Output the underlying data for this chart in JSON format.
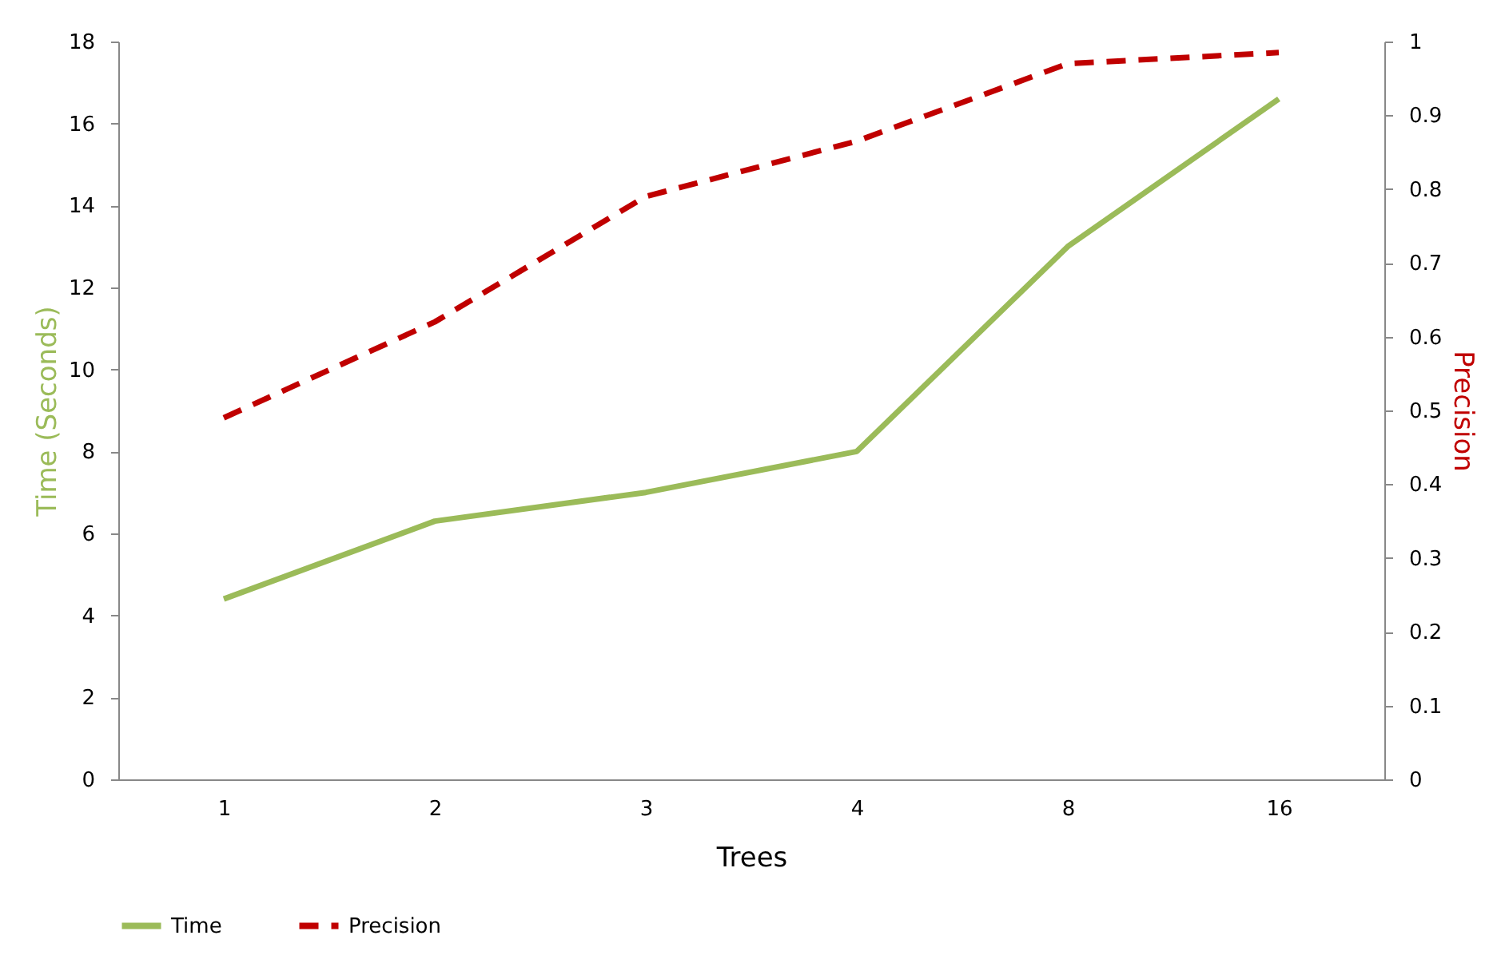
{
  "chart_data": {
    "type": "line",
    "xlabel": "Trees",
    "ylabel": "Time (Seconds)",
    "y2label": "Precision",
    "categories": [
      "1",
      "2",
      "3",
      "4",
      "8",
      "16"
    ],
    "series": [
      {
        "name": "Time",
        "color": "#9bbb59",
        "line_style": "solid",
        "values": [
          4.4,
          6.3,
          7.0,
          8.0,
          13.0,
          16.6
        ]
      },
      {
        "name": "Precision",
        "color": "#c00000",
        "line_style": "dashed",
        "axis": "y2",
        "values": [
          0.49,
          0.62,
          0.79,
          0.865,
          0.97,
          0.985
        ]
      }
    ],
    "ylim": [
      0,
      18
    ],
    "yticks": [
      0,
      2,
      4,
      6,
      8,
      10,
      12,
      14,
      16,
      18
    ],
    "y2lim": [
      0,
      1
    ],
    "y2ticks": [
      0,
      0.1,
      0.2,
      0.3,
      0.4,
      0.5,
      0.6,
      0.7,
      0.8,
      0.9,
      1
    ],
    "grid": false,
    "legend": "bottom",
    "marker": "none"
  }
}
